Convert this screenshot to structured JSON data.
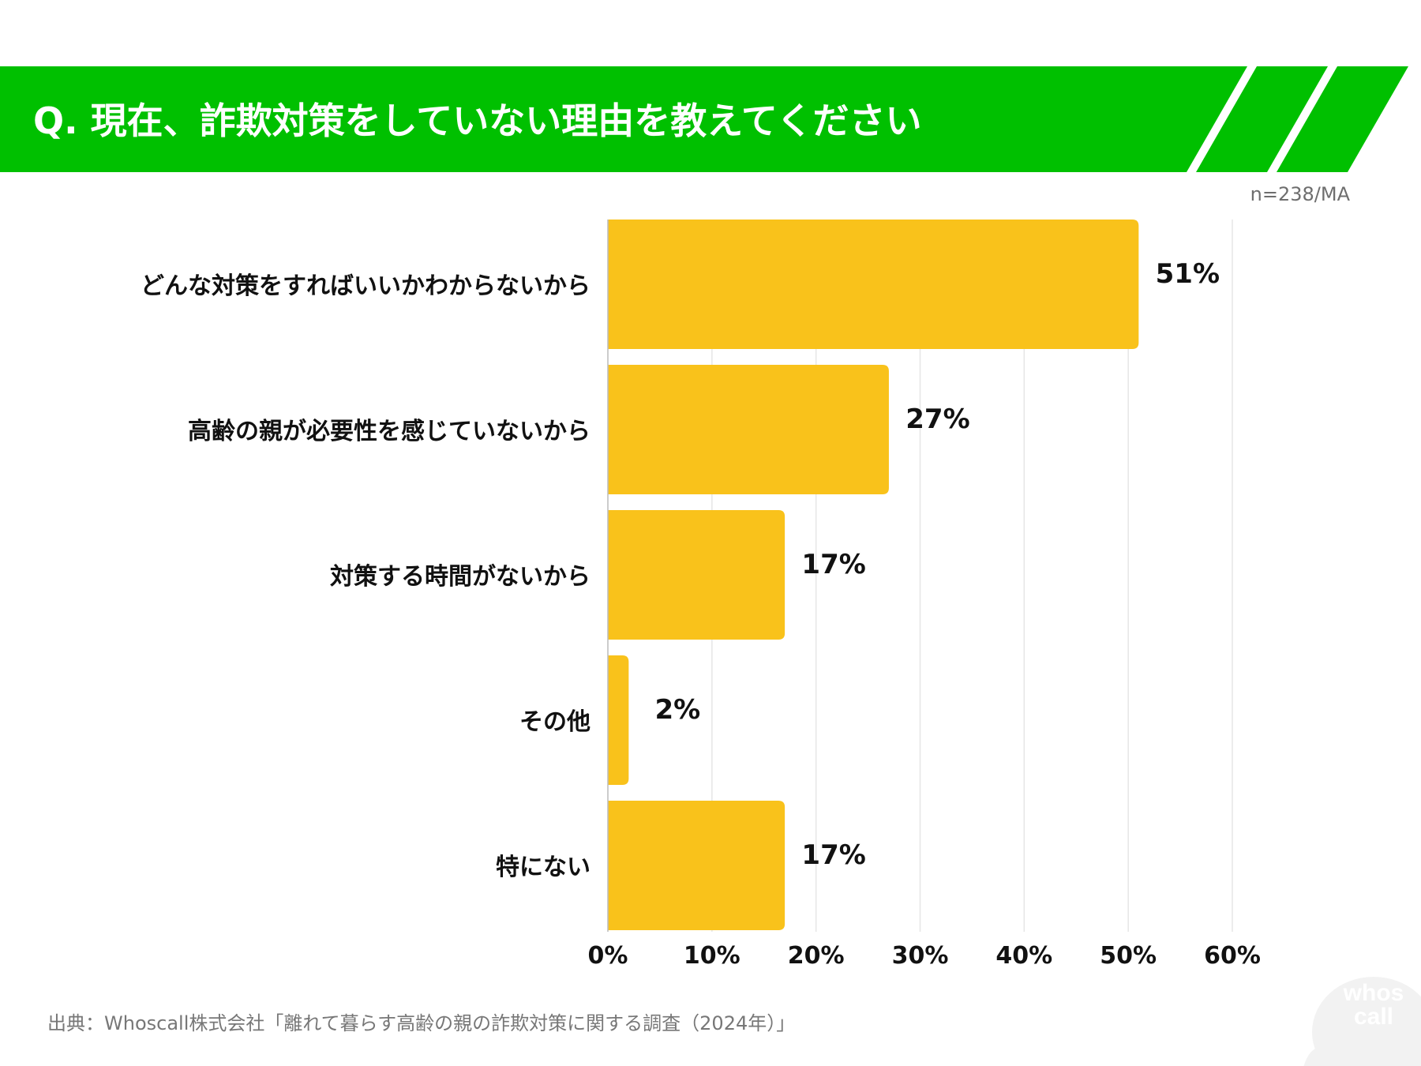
{
  "header": {
    "title": "Q. 現在、詐欺対策をしていない理由を教えてください",
    "sample": "n=238/MA"
  },
  "colors": {
    "banner": "#00C000",
    "bar": "#F9C21B",
    "grid": "#E6E6E6"
  },
  "chart_data": {
    "type": "bar",
    "orientation": "horizontal",
    "title": "Q. 現在、詐欺対策をしていない理由を教えてください",
    "categories": [
      "どんな対策をすればいいかわからないから",
      "高齢の親が必要性を感じていないから",
      "対策する時間がないから",
      "その他",
      "特にない"
    ],
    "values": [
      51,
      27,
      17,
      2,
      17
    ],
    "value_labels": [
      "51%",
      "27%",
      "17%",
      "2%",
      "17%"
    ],
    "xlim": [
      0,
      60
    ],
    "ticks": [
      "0%",
      "10%",
      "20%",
      "30%",
      "40%",
      "50%",
      "60%"
    ],
    "grid": true,
    "xlabel": "",
    "ylabel": ""
  },
  "footer": {
    "source": "出典：Whoscall株式会社「離れて暮らす高齢の親の詐欺対策に関する調査（2024年）」",
    "logo_line1": "whos",
    "logo_line2": "call"
  }
}
